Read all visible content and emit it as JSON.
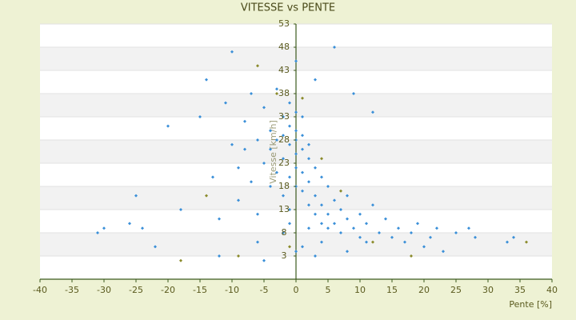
{
  "chart_data": {
    "type": "scatter",
    "title": "VITESSE vs PENTE",
    "xlabel": "Pente [%]",
    "ylabel": "Vitesse [km/h]",
    "xlim": [
      -40,
      40
    ],
    "xticks": [
      -40,
      -35,
      -30,
      -25,
      -20,
      -15,
      -10,
      -5,
      0,
      5,
      10,
      15,
      20,
      25,
      30,
      35,
      40
    ],
    "ylim": [
      -2,
      53
    ],
    "yticks": [
      3,
      8,
      13,
      18,
      23,
      28,
      33,
      38,
      43,
      48,
      53
    ],
    "series": [
      {
        "color": "#3a8fd8",
        "x": [
          -31,
          -30,
          -26,
          -25,
          -24,
          -22,
          -20,
          -18,
          -15,
          -14,
          -13,
          -12,
          -11,
          -10,
          -10,
          -9,
          -9,
          -8,
          -8,
          -7,
          -7,
          -6,
          -6,
          -5,
          -5,
          -4,
          -4,
          -4,
          -3,
          -3,
          -3,
          -2,
          -2,
          -2,
          -2,
          -1,
          -1,
          -1,
          -1,
          -1,
          0,
          0,
          0,
          0,
          0,
          0,
          0,
          1,
          1,
          1,
          1,
          1,
          2,
          2,
          2,
          2,
          3,
          3,
          3,
          3,
          4,
          4,
          4,
          5,
          5,
          5,
          6,
          6,
          6,
          7,
          7,
          8,
          8,
          9,
          9,
          10,
          10,
          11,
          11,
          12,
          12,
          13,
          14,
          15,
          16,
          17,
          18,
          19,
          20,
          21,
          22,
          23,
          25,
          27,
          28,
          33,
          34,
          -12,
          -5,
          0,
          3,
          8,
          -2,
          1,
          -1,
          2,
          -6,
          4
        ],
        "y": [
          8,
          9,
          10,
          16,
          9,
          5,
          31,
          13,
          33,
          41,
          20,
          11,
          36,
          27,
          47,
          22,
          15,
          32,
          26,
          19,
          38,
          28,
          12,
          35,
          23,
          30,
          18,
          26,
          39,
          21,
          28,
          33,
          24,
          16,
          29,
          36,
          27,
          20,
          31,
          13,
          45,
          30,
          25,
          22,
          18,
          28,
          34,
          26,
          21,
          17,
          29,
          33,
          24,
          19,
          14,
          27,
          22,
          16,
          12,
          41,
          20,
          14,
          10,
          18,
          12,
          9,
          48,
          15,
          10,
          13,
          8,
          16,
          11,
          38,
          9,
          12,
          7,
          10,
          6,
          14,
          34,
          8,
          11,
          7,
          9,
          6,
          8,
          10,
          5,
          7,
          9,
          4,
          8,
          9,
          7,
          6,
          7,
          3,
          2,
          4,
          3,
          4,
          8,
          5,
          10,
          9,
          6,
          6
        ]
      },
      {
        "color": "#8a8a2a",
        "x": [
          -18,
          -14,
          -6,
          -3,
          -1,
          1,
          4,
          7,
          12,
          18,
          36,
          -9
        ],
        "y": [
          2,
          16,
          44,
          38,
          5,
          37,
          24,
          17,
          6,
          3,
          6,
          3
        ]
      }
    ]
  }
}
